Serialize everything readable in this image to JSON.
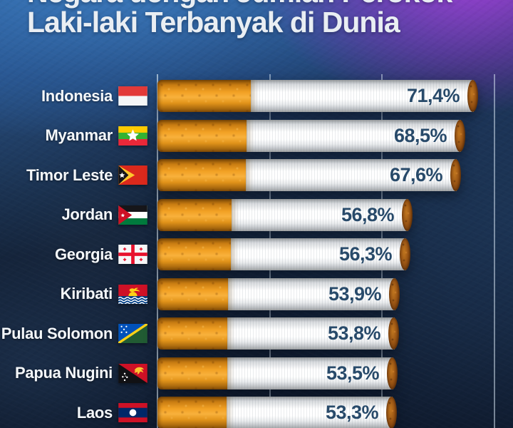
{
  "title": {
    "line1": "Negara dengan Jumlah Perokok",
    "line2": "Laki-laki Terbanyak di Dunia"
  },
  "chart_data": {
    "type": "bar",
    "orientation": "horizontal",
    "title": "Negara dengan Jumlah Perokok Laki-laki Terbanyak di Dunia",
    "categories": [
      "Indonesia",
      "Myanmar",
      "Timor Leste",
      "Jordan",
      "Georgia",
      "Kiribati",
      "Pulau Solomon",
      "Papua Nugini",
      "Laos"
    ],
    "values": [
      71.4,
      68.5,
      67.6,
      56.8,
      56.3,
      53.9,
      53.8,
      53.5,
      53.3
    ],
    "value_labels": [
      "71,4%",
      "68,5%",
      "67,6%",
      "56,8%",
      "56,3%",
      "53,9%",
      "53,8%",
      "53,5%",
      "53,3%"
    ],
    "unit": "%",
    "xlim": [
      0,
      75
    ],
    "gridlines": [
      0,
      25,
      50,
      75
    ],
    "grid": true,
    "legend": false,
    "bar_style": "cigarette-illustration",
    "flag_ids": [
      "indonesia",
      "myanmar",
      "timor-leste",
      "jordan",
      "georgia",
      "kiribati",
      "solomon-islands",
      "papua-new-guinea",
      "laos"
    ]
  },
  "colors": {
    "background_navy": "#15243c",
    "top_band_blue": "#2f6db8",
    "top_right_purple": "#9a3fd0",
    "title_text": "#e9eef3",
    "label_text": "#f4f7fa",
    "value_text": "#284a6a",
    "cigarette_filter_orange": "#f2a124",
    "cigarette_paper_white": "#ffffff",
    "cigarette_tip_brown": "#8a4a12",
    "gridline": "#dcecf8"
  }
}
